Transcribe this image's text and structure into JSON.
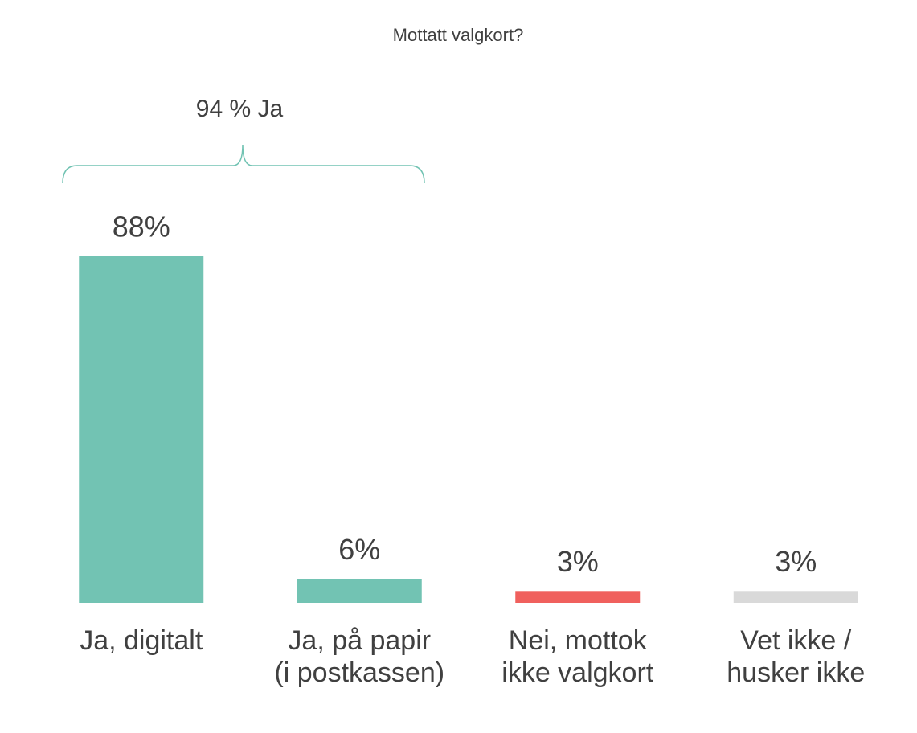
{
  "chart_data": {
    "type": "bar",
    "title": "Mottatt valgkort?",
    "annotation": "94 % Ja",
    "categories": [
      "Ja, digitalt",
      "Ja, på papir\n(i postkassen)",
      "Nei, mottok\nikke valgkort",
      "Vet ikke /\nhusker ikke"
    ],
    "values": [
      88,
      6,
      3,
      3
    ],
    "value_labels": [
      "88%",
      "6%",
      "3%",
      "3%"
    ],
    "colors": [
      "#72c3b3",
      "#72c3b3",
      "#f0605d",
      "#d9d9d9"
    ],
    "ylim": [
      0,
      100
    ]
  }
}
